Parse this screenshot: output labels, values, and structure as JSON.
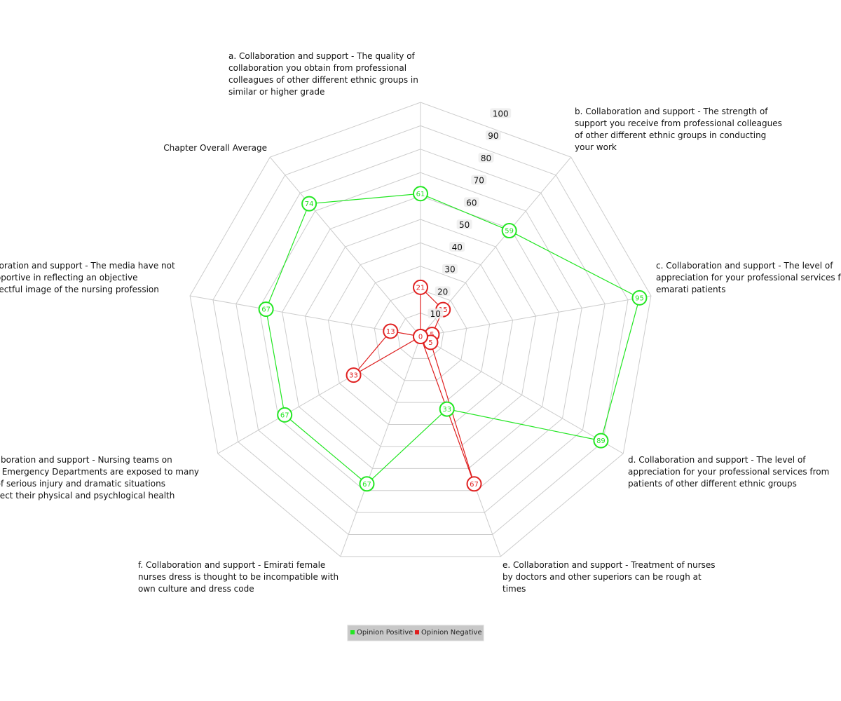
{
  "chart_data": {
    "type": "radar",
    "title": "",
    "axes": [
      "a. Collaboration and support - The quality of collaboration you obtain from professional colleagues of other different ethnic groups in similar or higher grade",
      "b. Collaboration and support - The strength of support you receive from professional colleagues of other different ethnic groups in conducting your work",
      "c. Collaboration and support - The level of appreciation for your professional services from emarati patients",
      "d. Collaboration and support - The level of appreciation for your professional services from patients of other different ethnic groups",
      "e. Collaboration and support - Treatment of nurses by doctors and other superiors can be rough at times",
      "f. Collaboration and support - Emirati female nurses dress is thought to be incompatible with own culture and dress code",
      "g. Collaboration and support - Nursing teams on duty at Emergency Departments are exposed to many cases of serious injury and dramatic situations that affect their physical and psychlogical health",
      "h. Collaboration and support - The media have not been supportive in reflecting an objective and respectful image of the nursing profession",
      "Chapter Overall Average"
    ],
    "axis_label_lines": [
      [
        "a. Collaboration and support - The quality of",
        "collaboration you obtain from professional",
        "colleagues of other different ethnic groups in",
        "similar or higher grade"
      ],
      [
        "b. Collaboration and support - The strength of",
        "support you receive from professional colleagues",
        "of other different ethnic groups in conducting",
        "your work"
      ],
      [
        "c. Collaboration and support - The level of",
        "appreciation for your professional services from",
        "emarati patients"
      ],
      [
        "d. Collaboration and support - The level of",
        "appreciation for your professional services from",
        "patients of other different ethnic groups"
      ],
      [
        "e. Collaboration and support - Treatment of nurses",
        "by doctors and other superiors can be rough at",
        "times"
      ],
      [
        "f. Collaboration and support - Emirati female",
        "nurses dress is thought to be incompatible with",
        "own culture and dress code"
      ],
      [
        "g. Collaboration and support - Nursing teams on",
        "duty at Emergency Departments are exposed to many",
        "cases of serious injury and dramatic situations",
        "that affect their physical and psychlogical health"
      ],
      [
        "h. Collaboration and support - The media have not",
        "been supportive in reflecting an objective",
        "and respectful image of the nursing profession"
      ],
      [
        "Chapter Overall Average"
      ]
    ],
    "series": [
      {
        "name": "Opinion Positive",
        "color": "#22e622",
        "values": [
          61,
          59,
          95,
          89,
          33,
          67,
          67,
          67,
          74
        ]
      },
      {
        "name": "Opinion Negative",
        "color": "#e02020",
        "values": [
          21,
          15,
          5,
          5,
          67,
          0,
          33,
          13,
          0
        ]
      }
    ],
    "ticks": [
      10,
      20,
      30,
      40,
      50,
      60,
      70,
      80,
      90,
      100
    ],
    "range": [
      0,
      100
    ],
    "grid": true,
    "legend": "bottom"
  }
}
